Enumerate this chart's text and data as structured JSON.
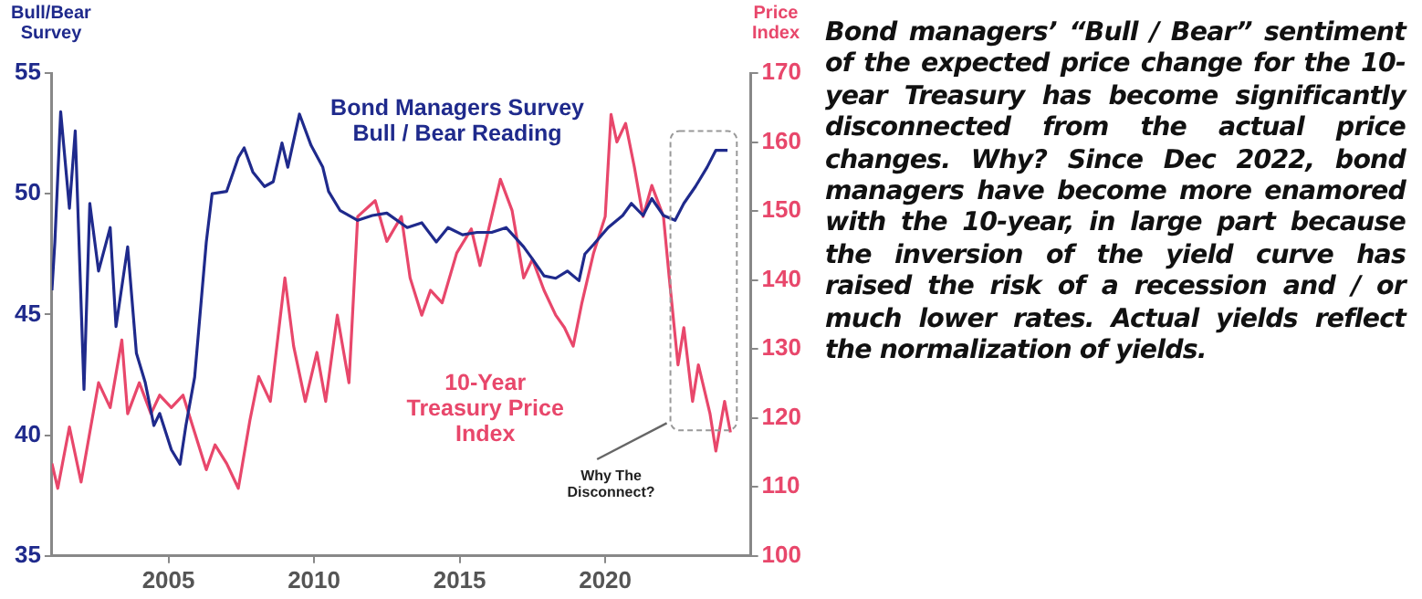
{
  "chart_data": {
    "type": "line",
    "ylabel": "Bull/Bear Survey",
    "y2label": "Price Index",
    "xlim": [
      2001,
      2025
    ],
    "xticks": [
      2005,
      2010,
      2015,
      2020
    ],
    "ylim": [
      35,
      55
    ],
    "yticks": [
      35,
      40,
      45,
      50,
      55
    ],
    "y2lim": [
      100,
      170
    ],
    "y2ticks": [
      100,
      110,
      120,
      130,
      140,
      150,
      160,
      170
    ],
    "marker": "none",
    "line_style": "solid",
    "series": [
      {
        "name": "Bond Managers Survey Bull / Bear Reading",
        "color": "#1f2a8c",
        "x": [
          2001.0,
          2001.1,
          2001.3,
          2001.6,
          2001.8,
          2002.1,
          2002.3,
          2002.6,
          2003.0,
          2003.2,
          2003.6,
          2003.9,
          2004.2,
          2004.5,
          2004.7,
          2005.1,
          2005.4,
          2005.6,
          2005.9,
          2006.3,
          2006.5,
          2007.0,
          2007.4,
          2007.6,
          2007.9,
          2008.3,
          2008.6,
          2008.9,
          2009.1,
          2009.5,
          2009.9,
          2010.3,
          2010.5,
          2010.9,
          2011.5,
          2012.0,
          2012.5,
          2013.2,
          2013.7,
          2014.2,
          2014.6,
          2015.1,
          2015.6,
          2016.1,
          2016.6,
          2017.2,
          2017.5,
          2017.9,
          2018.3,
          2018.7,
          2019.1,
          2019.3,
          2019.6,
          2020.1,
          2020.6,
          2020.9,
          2021.3,
          2021.6,
          2022.0,
          2022.4,
          2022.7,
          2023.1,
          2023.5,
          2023.8,
          2024.2
        ],
        "values": [
          46.0,
          48.0,
          53.4,
          49.4,
          52.6,
          41.9,
          49.6,
          46.8,
          48.6,
          44.5,
          47.8,
          43.4,
          42.2,
          40.4,
          40.9,
          39.4,
          38.8,
          40.4,
          42.4,
          48.0,
          50.0,
          50.1,
          51.5,
          51.9,
          50.9,
          50.3,
          50.5,
          52.1,
          51.1,
          53.3,
          52.0,
          51.1,
          50.1,
          49.3,
          48.9,
          49.1,
          49.2,
          48.6,
          48.8,
          48.0,
          48.6,
          48.3,
          48.4,
          48.4,
          48.6,
          47.8,
          47.3,
          46.6,
          46.5,
          46.8,
          46.4,
          47.5,
          47.9,
          48.6,
          49.1,
          49.6,
          49.1,
          49.8,
          49.1,
          48.9,
          49.6,
          50.3,
          51.1,
          51.8,
          51.8
        ]
      },
      {
        "name": "10-Year Treasury Price Index",
        "color": "#e8476b",
        "axis": "y2",
        "x": [
          2001.0,
          2001.2,
          2001.6,
          2002.0,
          2002.3,
          2002.6,
          2003.0,
          2003.4,
          2003.6,
          2004.0,
          2004.4,
          2004.7,
          2005.1,
          2005.5,
          2005.9,
          2006.3,
          2006.6,
          2007.0,
          2007.4,
          2007.8,
          2008.1,
          2008.5,
          2009.0,
          2009.3,
          2009.7,
          2010.1,
          2010.4,
          2010.8,
          2011.2,
          2011.5,
          2012.1,
          2012.5,
          2013.0,
          2013.3,
          2013.7,
          2014.0,
          2014.4,
          2014.9,
          2015.4,
          2015.7,
          2016.1,
          2016.4,
          2016.8,
          2017.2,
          2017.5,
          2017.9,
          2018.3,
          2018.6,
          2018.9,
          2019.2,
          2019.6,
          2020.0,
          2020.2,
          2020.4,
          2020.7,
          2021.0,
          2021.3,
          2021.6,
          2022.0,
          2022.2,
          2022.5,
          2022.7,
          2023.0,
          2023.2,
          2023.6,
          2023.8,
          2024.1,
          2024.3
        ],
        "values": [
          113.4,
          109.8,
          118.7,
          110.7,
          117.9,
          125.1,
          121.5,
          131.3,
          120.6,
          125.1,
          120.6,
          123.3,
          121.5,
          123.3,
          117.9,
          112.5,
          116.1,
          113.4,
          109.8,
          119.7,
          126.0,
          122.4,
          140.3,
          130.4,
          122.4,
          129.5,
          122.4,
          134.9,
          125.1,
          149.2,
          151.5,
          145.6,
          149.2,
          140.3,
          134.9,
          138.5,
          136.7,
          143.9,
          147.4,
          142.1,
          149.2,
          154.6,
          150.1,
          140.3,
          143.0,
          138.5,
          134.9,
          133.1,
          130.4,
          136.7,
          143.9,
          149.2,
          164.0,
          160.0,
          162.7,
          156.4,
          149.2,
          153.7,
          149.2,
          140.3,
          127.7,
          133.1,
          122.4,
          127.7,
          120.6,
          115.2,
          122.4,
          117.9
        ]
      }
    ],
    "annotations": [
      "Why The Disconnect?",
      "Bond managers’ “Bull / Bear” sentiment of the expected price change for the 10-year Treasury has become significantly disconnected from the actual price changes. Why? Since Dec 2022, bond managers have become more enamored with the 10-year, in large part because the inversion of the yield curve has raised the risk of a recession and / or much lower rates. Actual yields reflect the normalization of yields."
    ]
  }
}
